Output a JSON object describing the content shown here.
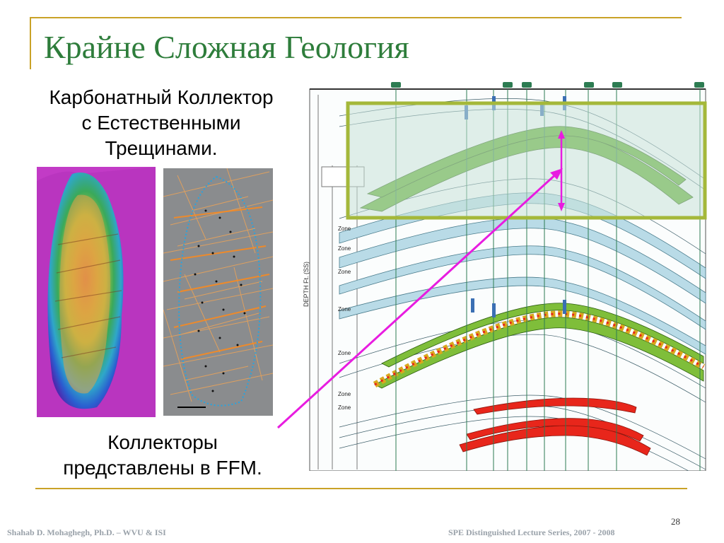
{
  "slide": {
    "title": "Крайне Сложная Геология",
    "caption_top": [
      "Карбонатный Коллектор",
      "с Естественными",
      "Трещинами."
    ],
    "caption_bottom": [
      "Коллекторы",
      "представлены в FFM."
    ],
    "page_number": "28",
    "footer_left": "Shahab D. Mohaghegh, Ph.D. – WVU & ISI",
    "footer_right": "SPE Distinguished Lecture Series, 2007 - 2008"
  },
  "figures": {
    "map_image": "reservoir-structure-contour-map",
    "fracture_image": "fracture-network-map",
    "cross_section": {
      "axis_label": "DEPTH Ft. (SS)",
      "zone_labels": [
        "Zone",
        "Zone",
        "Zone",
        "Zone",
        "Zone",
        "Zone",
        "Zone"
      ],
      "highlight_color": "#a4b83a",
      "green_layer_color": "#5fae2c",
      "red_layer_color": "#e8261b",
      "blue_layer_color": "#b9dbe7",
      "arrow_color": "#e81ce0"
    }
  }
}
